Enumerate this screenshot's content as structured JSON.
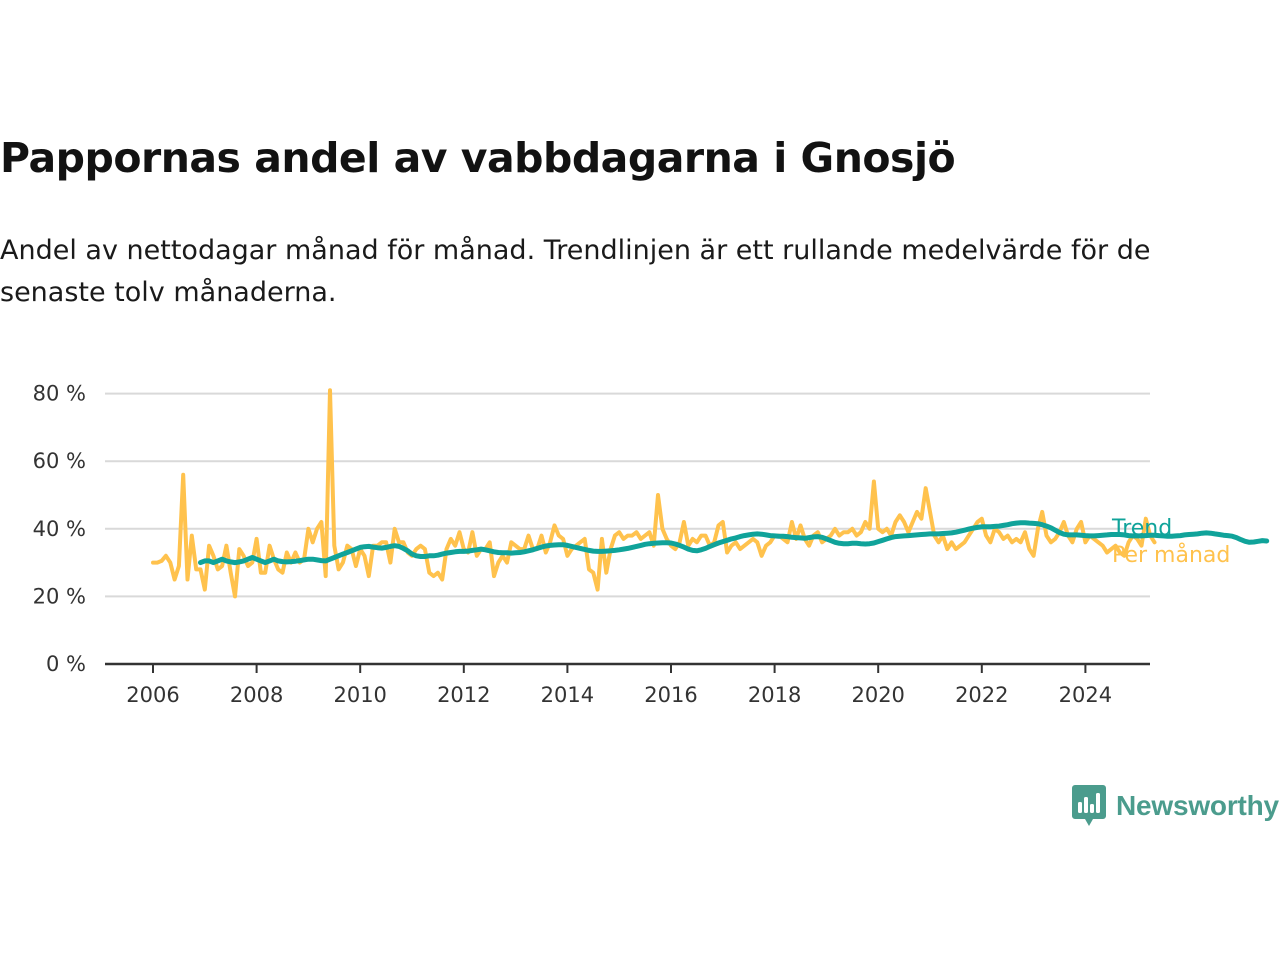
{
  "chart_data": {
    "type": "line",
    "title": "Pappornas andel av vabbdagarna i Gnosjö",
    "subtitle": "Andel av nettodagar månad för månad. Trendlinjen är ett rullande medelvärde för de senaste tolv månaderna.",
    "xlabel": "",
    "ylabel": "",
    "x_start": "2006-01",
    "x_end": "2024-05",
    "xlim": [
      2006.0,
      2024.42
    ],
    "ylim": [
      0,
      80
    ],
    "y_ticks": [
      0,
      20,
      40,
      60,
      80
    ],
    "y_tick_labels": [
      "0 %",
      "20 %",
      "40 %",
      "60 %",
      "80 %"
    ],
    "x_ticks": [
      2006,
      2008,
      2010,
      2012,
      2014,
      2016,
      2018,
      2020,
      2022,
      2024
    ],
    "x_tick_labels": [
      "2006",
      "2008",
      "2010",
      "2012",
      "2014",
      "2016",
      "2018",
      "2020",
      "2022",
      "2024"
    ],
    "grid": true,
    "legend": "inline-right",
    "series": [
      {
        "name": "Trend",
        "color": "#10a39a",
        "start": "2006-12",
        "values": [
          30,
          30.5,
          30.5,
          30,
          30.5,
          31,
          30.5,
          30.2,
          30,
          30.2,
          30.5,
          31,
          31.5,
          31,
          30.5,
          30,
          30.5,
          31,
          30.5,
          30.3,
          30.2,
          30.3,
          30.4,
          30.6,
          30.8,
          31,
          31,
          30.8,
          30.6,
          30.5,
          31,
          31.5,
          32,
          32.5,
          33,
          33.5,
          34,
          34.5,
          34.7,
          34.8,
          34.6,
          34.4,
          34.3,
          34.5,
          34.8,
          35,
          34.8,
          34.2,
          33.5,
          32.5,
          32,
          31.8,
          31.8,
          32,
          32,
          32.2,
          32.5,
          32.8,
          33,
          33.2,
          33.3,
          33.3,
          33.4,
          33.6,
          33.8,
          34,
          33.8,
          33.5,
          33.2,
          33,
          32.9,
          32.9,
          32.8,
          32.9,
          33,
          33.2,
          33.5,
          33.8,
          34.2,
          34.6,
          34.9,
          35.1,
          35.2,
          35.3,
          35.3,
          35.1,
          34.8,
          34.5,
          34.2,
          33.9,
          33.6,
          33.4,
          33.3,
          33.3,
          33.4,
          33.5,
          33.6,
          33.8,
          34,
          34.2,
          34.5,
          34.8,
          35.1,
          35.4,
          35.6,
          35.7,
          35.8,
          35.9,
          35.9,
          35.8,
          35.5,
          35.1,
          34.6,
          34,
          33.6,
          33.5,
          33.8,
          34.2,
          34.8,
          35.3,
          35.8,
          36.2,
          36.6,
          37,
          37.3,
          37.7,
          38,
          38.2,
          38.4,
          38.5,
          38.4,
          38.2,
          38,
          37.9,
          37.8,
          37.8,
          37.7,
          37.5,
          37.4,
          37.3,
          37.2,
          37.4,
          37.6,
          37.7,
          37.5,
          37,
          36.5,
          36,
          35.7,
          35.6,
          35.6,
          35.7,
          35.7,
          35.6,
          35.5,
          35.6,
          35.8,
          36.2,
          36.6,
          37,
          37.4,
          37.7,
          37.8,
          37.9,
          38,
          38.1,
          38.2,
          38.3,
          38.4,
          38.5,
          38.5,
          38.5,
          38.6,
          38.7,
          38.8,
          39,
          39.3,
          39.6,
          39.9,
          40.2,
          40.4,
          40.6,
          40.6,
          40.6,
          40.7,
          40.8,
          41,
          41.2,
          41.5,
          41.7,
          41.8,
          41.8,
          41.7,
          41.6,
          41.5,
          41.2,
          40.8,
          40.3,
          39.6,
          38.9,
          38.4,
          38.2,
          38.2,
          38.2,
          38.1,
          38,
          37.9,
          37.9,
          38,
          38.1,
          38.2,
          38.3,
          38.3,
          38.3,
          38.2,
          38,
          37.9,
          37.9,
          37.9,
          38,
          38.1,
          38.1,
          38,
          37.9,
          37.8,
          37.8,
          37.9,
          38,
          38.2,
          38.3,
          38.4,
          38.5,
          38.7,
          38.8,
          38.7,
          38.5,
          38.3,
          38.1,
          38,
          37.8,
          37.4,
          36.8,
          36.3,
          36,
          36.1,
          36.3,
          36.5,
          36.4
        ]
      },
      {
        "name": "Per månad",
        "color": "#ffc24d",
        "start": "2006-01",
        "values": [
          30,
          30,
          30.5,
          32,
          30,
          25,
          29,
          56,
          25,
          38,
          28,
          28,
          22,
          35,
          32,
          28,
          29,
          35,
          27,
          20,
          34,
          32,
          29,
          30,
          37,
          27,
          27,
          35,
          31,
          28,
          27,
          33,
          30,
          33,
          30,
          31,
          40,
          36,
          40,
          42,
          26,
          81,
          35,
          28,
          30,
          35,
          34,
          29,
          34,
          32,
          26,
          35,
          35,
          36,
          36,
          30,
          40,
          36,
          36,
          33,
          32,
          34,
          35,
          34,
          27,
          26,
          27,
          25,
          34,
          37,
          35,
          39,
          34,
          33,
          39,
          32,
          34,
          34,
          36,
          26,
          30,
          32,
          30,
          36,
          35,
          34,
          34,
          38,
          34,
          34,
          38,
          33,
          36,
          41,
          38,
          37,
          32,
          34,
          35,
          36,
          37,
          28,
          27,
          22,
          37,
          27,
          34,
          38,
          39,
          37,
          38,
          38,
          39,
          37,
          38,
          39,
          35,
          50,
          40,
          37,
          35,
          34,
          36,
          42,
          35,
          37,
          36,
          38,
          38,
          35,
          36,
          41,
          42,
          33,
          35,
          36,
          34,
          35,
          36,
          37,
          36,
          32,
          35,
          36,
          38,
          38,
          37,
          36,
          42,
          37,
          41,
          37,
          35,
          38,
          39,
          36,
          37,
          38,
          40,
          38,
          39,
          39,
          40,
          38,
          39,
          42,
          40,
          54,
          40,
          39,
          40,
          38,
          42,
          44,
          42,
          39,
          42,
          45,
          43,
          52,
          45,
          38,
          36,
          38,
          34,
          36,
          34,
          35,
          36,
          38,
          40,
          42,
          43,
          38,
          36,
          40,
          39,
          37,
          38,
          36,
          37,
          36,
          39,
          34,
          32,
          40,
          45,
          38,
          36,
          37,
          39,
          42,
          38,
          36,
          40,
          42,
          36,
          38,
          37,
          36,
          35,
          33,
          34,
          35,
          33,
          32,
          36,
          38,
          37,
          35,
          43,
          38,
          36
        ]
      }
    ]
  },
  "brand": {
    "name": "Newsworthy",
    "icon": "newsworthy-logo-icon",
    "color": "#4b9c8d"
  }
}
